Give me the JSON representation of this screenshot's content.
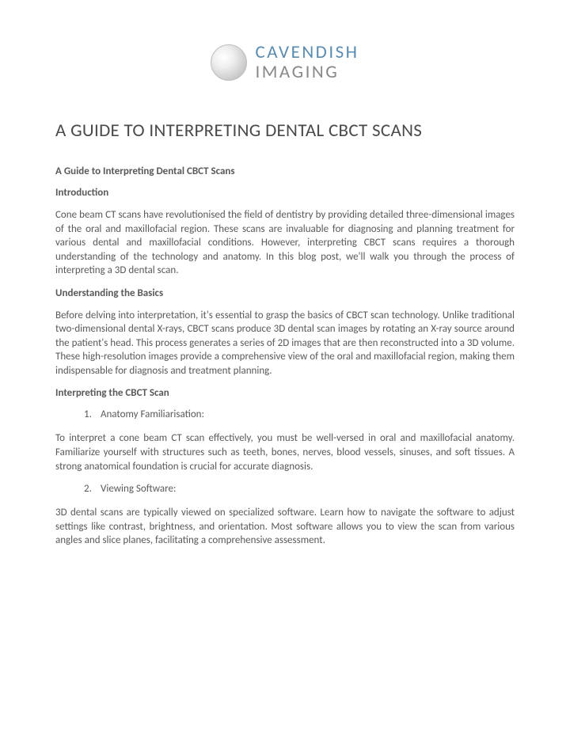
{
  "logo": {
    "line1": "CAVENDISH",
    "line2": "IMAGING"
  },
  "title": "A GUIDE TO INTERPRETING DENTAL CBCT SCANS",
  "subheading": "A Guide to Interpreting Dental CBCT Scans",
  "sections": {
    "intro": {
      "heading": "Introduction",
      "body": "Cone beam CT scans have revolutionised the field of dentistry by providing detailed three-dimensional images of the oral and maxillofacial region. These scans are invaluable for diagnosing and planning treatment for various dental and maxillofacial conditions. However, interpreting CBCT scans requires a thorough understanding of the technology and anatomy. In this blog post, we'll walk you through the process of interpreting a 3D dental scan."
    },
    "basics": {
      "heading": "Understanding the Basics",
      "body": "Before delving into interpretation, it's essential to grasp the basics of CBCT scan technology. Unlike traditional two-dimensional dental X-rays, CBCT scans produce 3D dental scan images by rotating an X-ray source around the patient's head. This process generates a series of 2D images that are then reconstructed into a 3D volume. These high-resolution images provide a comprehensive view of the oral and maxillofacial region, making them indispensable for diagnosis and treatment planning."
    },
    "interp": {
      "heading": "Interpreting the CBCT Scan",
      "item1_num": "1.",
      "item1_label": "Anatomy Familiarisation:",
      "item1_body": "To interpret a cone beam CT scan effectively, you must be well-versed in oral and maxillofacial anatomy. Familiarize yourself with structures such as teeth, bones, nerves, blood vessels, sinuses, and soft tissues. A strong anatomical foundation is crucial for accurate diagnosis.",
      "item2_num": "2.",
      "item2_label": "Viewing Software:",
      "item2_body": "3D dental scans are typically viewed on specialized software. Learn how to navigate the software to adjust settings like contrast, brightness, and orientation. Most software allows you to view the scan from various angles and slice planes, facilitating a comprehensive assessment."
    }
  },
  "colors": {
    "text": "#595959",
    "title": "#4a4a4a",
    "logo_blue": "#5a8cb0",
    "logo_gray": "#888888",
    "background": "#ffffff"
  },
  "typography": {
    "title_fontsize": 23,
    "body_fontsize": 13,
    "logo_fontsize": 23,
    "font_family": "Calibri"
  }
}
